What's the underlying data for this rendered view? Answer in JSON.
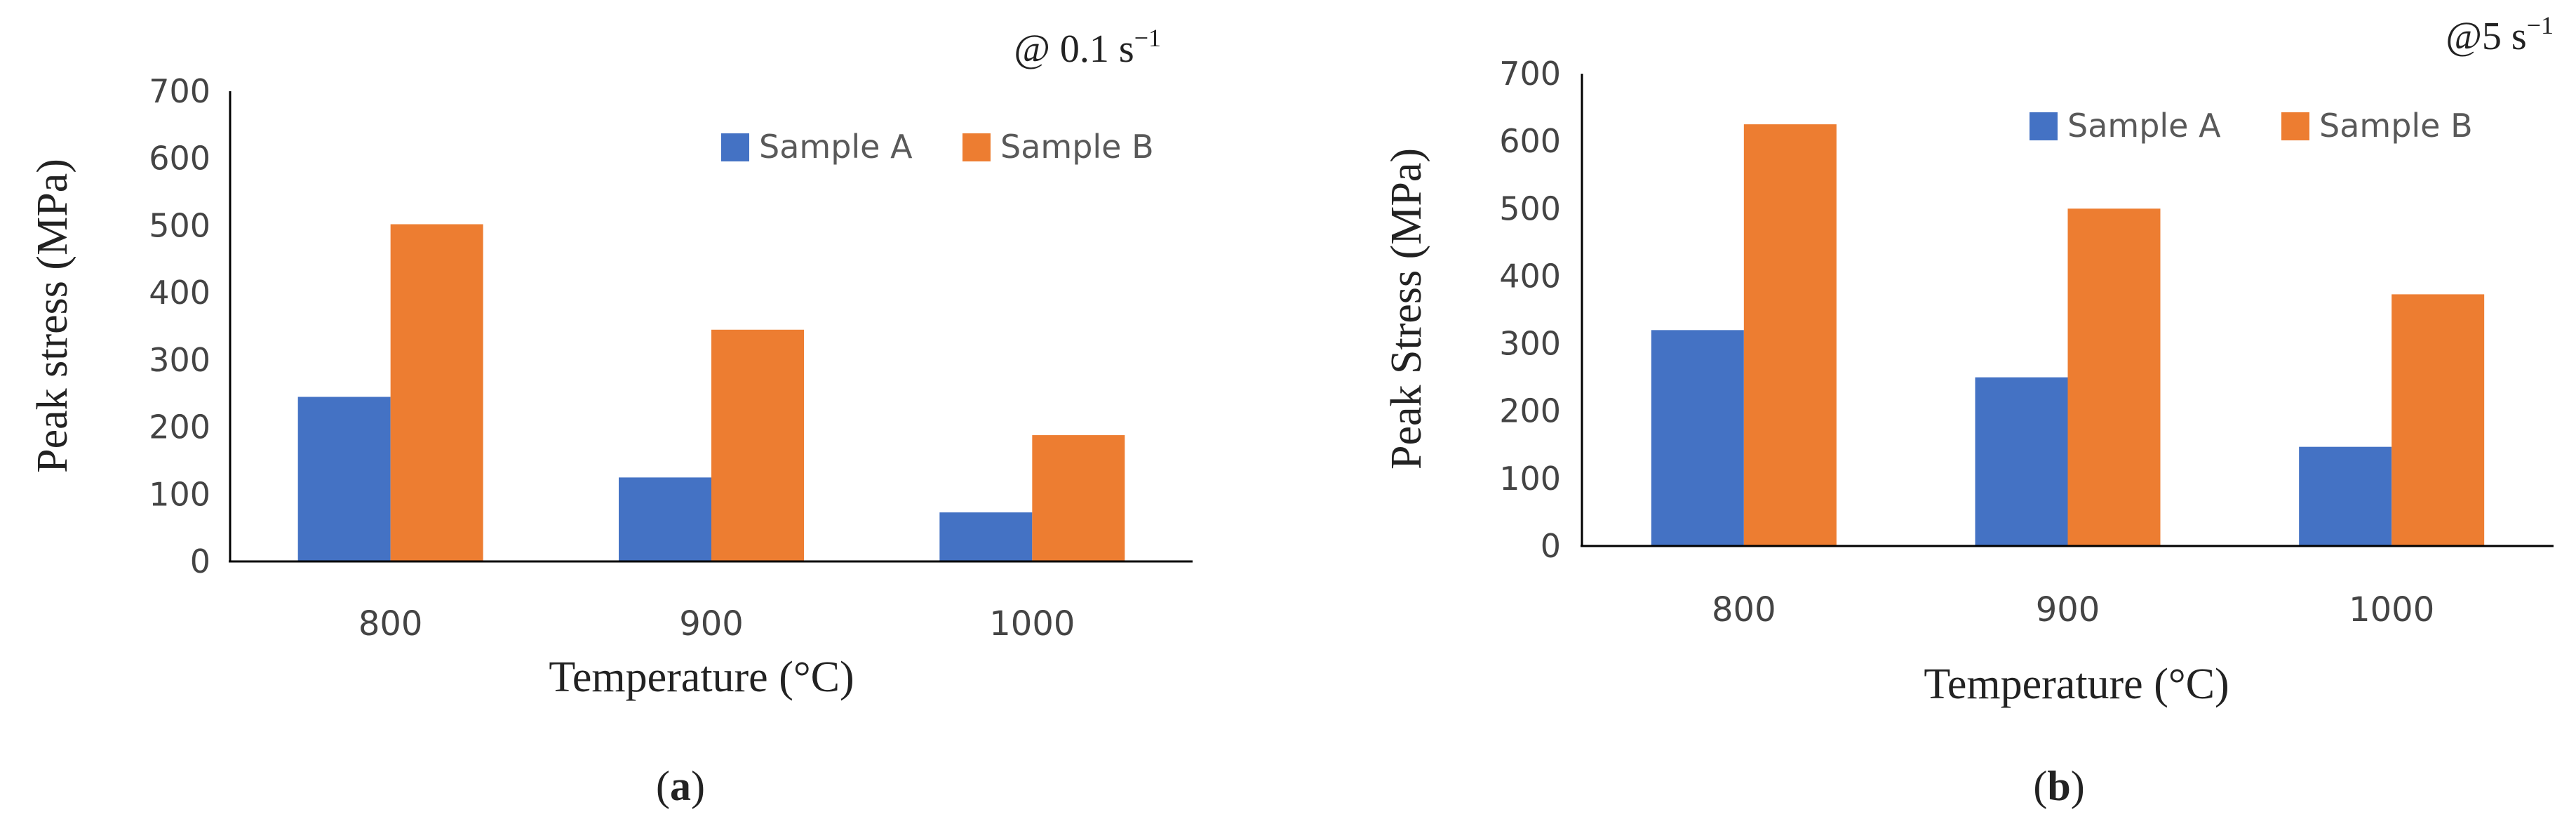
{
  "chart_data": [
    {
      "type": "bar",
      "panel_label_prefix": "(",
      "panel_label_letter": "a",
      "panel_label_suffix": ")",
      "rate_annotation": "@ 0.1 s",
      "rate_exponent": "−1",
      "xlabel": "Temperature (°C)",
      "ylabel": "Peak stress (MPa)",
      "ylim": [
        0,
        700
      ],
      "yticks": [
        "0",
        "100",
        "200",
        "300",
        "400",
        "500",
        "600",
        "700"
      ],
      "categories": [
        "800",
        "900",
        "1000"
      ],
      "series": [
        {
          "name": "Sample A",
          "values": [
            245,
            125,
            73
          ]
        },
        {
          "name": "Sample B",
          "values": [
            502,
            345,
            188
          ]
        }
      ],
      "legend_position": "top-right",
      "grid": false
    },
    {
      "type": "bar",
      "panel_label_prefix": "(",
      "panel_label_letter": "b",
      "panel_label_suffix": ")",
      "rate_annotation": "@5 s",
      "rate_exponent": "−1",
      "xlabel": "Temperature (°C)",
      "ylabel": "Peak Stress (MPa)",
      "ylim": [
        0,
        700
      ],
      "yticks": [
        "0",
        "100",
        "200",
        "300",
        "400",
        "500",
        "600",
        "700"
      ],
      "categories": [
        "800",
        "900",
        "1000"
      ],
      "series": [
        {
          "name": "Sample A",
          "values": [
            320,
            250,
            147
          ]
        },
        {
          "name": "Sample B",
          "values": [
            625,
            500,
            373
          ]
        }
      ],
      "legend_position": "top-right",
      "grid": false
    }
  ],
  "colors": {
    "sample_a": "#4472C4",
    "sample_b": "#ED7D31",
    "axis": "#000000",
    "text": "#222222"
  }
}
